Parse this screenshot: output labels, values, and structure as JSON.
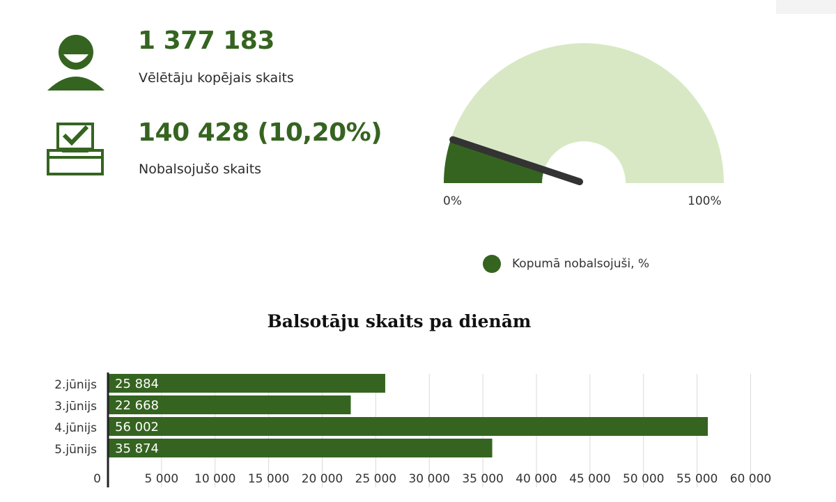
{
  "colors": {
    "dark_green": "#356420",
    "light_green": "#d8e8c5",
    "needle": "#333333",
    "grid": "#d9d9d9",
    "bar_label": "#ffffff"
  },
  "stats": {
    "voters_total": {
      "value": "1 377 183",
      "label": "Vēlētāju kopējais skaits",
      "icon": "person-icon"
    },
    "voted": {
      "value": "140 428 (10,20%)",
      "label": "Nobalsojušo skaits",
      "icon": "ballot-box-icon"
    }
  },
  "gauge": {
    "percent": 10.2,
    "min_label": "0%",
    "max_label": "100%",
    "legend_label": "Kopumā nobalsojuši, %"
  },
  "chart_data": [
    {
      "type": "pie",
      "subtype": "gauge",
      "values": [
        10.2
      ],
      "range": [
        0,
        100
      ],
      "tick_labels": [
        "0%",
        "100%"
      ],
      "legend": [
        "Kopumā nobalsojuši, %"
      ],
      "legend_position": "bottom"
    },
    {
      "type": "bar",
      "orientation": "horizontal",
      "title": "Balsotāju skaits pa dienām",
      "categories": [
        "2.jūnijs",
        "3.jūnijs",
        "4.jūnijs",
        "5.jūnijs"
      ],
      "values": [
        25884,
        22668,
        56002,
        35874
      ],
      "value_labels": [
        "25 884",
        "22 668",
        "56 002",
        "35 874"
      ],
      "xlim": [
        0,
        60000
      ],
      "x_ticks": [
        0,
        5000,
        10000,
        15000,
        20000,
        25000,
        30000,
        35000,
        40000,
        45000,
        50000,
        55000,
        60000
      ],
      "x_tick_labels": [
        "0",
        "5 000",
        "10 000",
        "15 000",
        "20 000",
        "25 000",
        "30 000",
        "35 000",
        "40 000",
        "45 000",
        "50 000",
        "55 000",
        "60 000"
      ],
      "grid": true
    }
  ]
}
